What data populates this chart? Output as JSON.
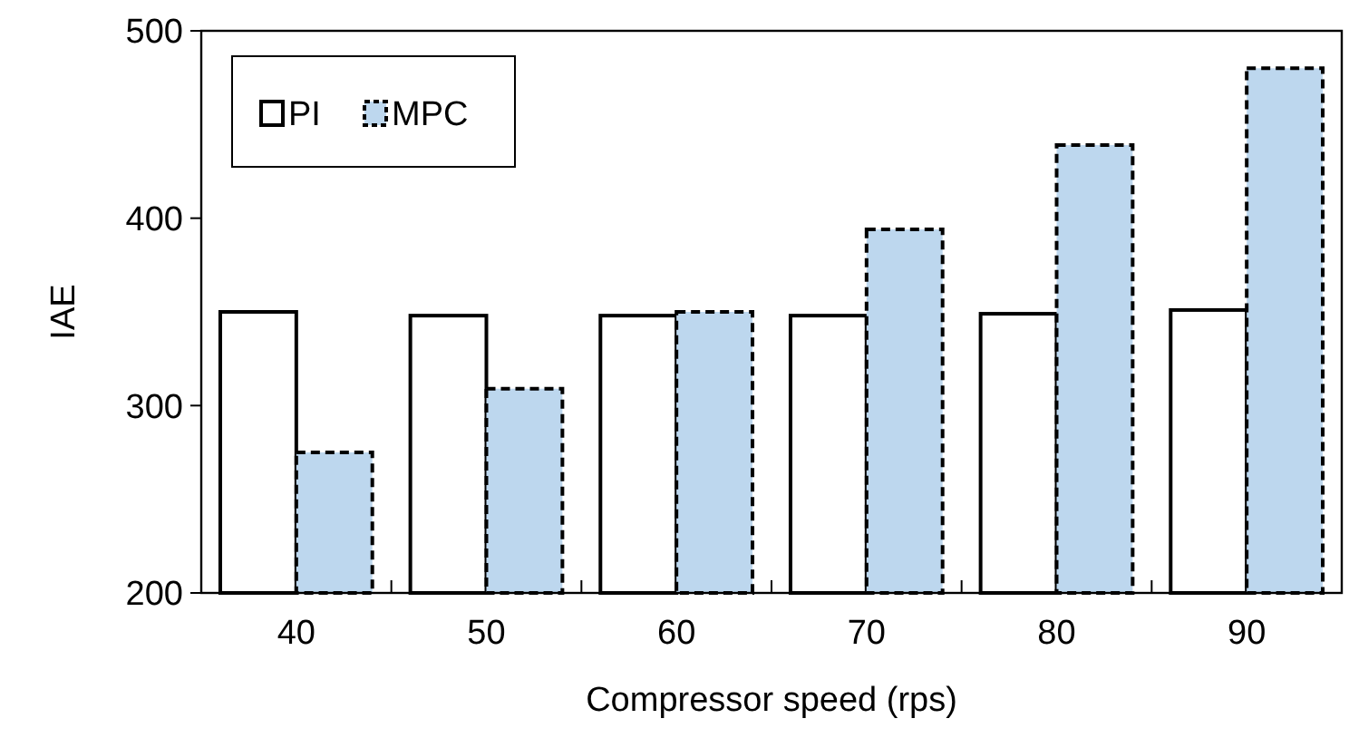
{
  "chart_data": {
    "type": "bar",
    "xlabel": "Compressor speed (rps)",
    "ylabel": "IAE",
    "categories": [
      "40",
      "50",
      "60",
      "70",
      "80",
      "90"
    ],
    "series": [
      {
        "name": "PI",
        "color": "#ffffff",
        "line_style": "solid",
        "values": [
          350,
          348,
          348,
          348,
          349,
          351
        ]
      },
      {
        "name": "MPC",
        "color": "#bdd7ee",
        "line_style": "dashed",
        "values": [
          275,
          309,
          350,
          394,
          439,
          480
        ]
      }
    ],
    "ylim": [
      200,
      500
    ],
    "yticks": [
      200,
      300,
      400,
      500
    ],
    "grid": false,
    "legend": "top left"
  }
}
